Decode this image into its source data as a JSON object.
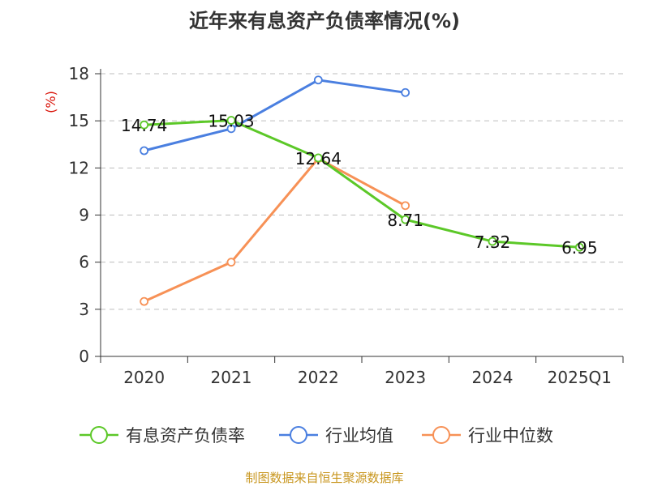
{
  "chart_data": {
    "type": "line",
    "title": "近年来有息资产负债率情况(%)",
    "ylabel": "(%)",
    "xlabel": "",
    "categories": [
      "2020",
      "2021",
      "2022",
      "2023",
      "2024",
      "2025Q1"
    ],
    "ylim": [
      0,
      18
    ],
    "yticks": [
      0,
      3,
      6,
      9,
      12,
      15,
      18
    ],
    "grid": true,
    "legend_position": "bottom",
    "series": [
      {
        "name": "有息资产负债率",
        "color": "#5cc828",
        "values": [
          14.74,
          15.03,
          12.64,
          8.71,
          7.32,
          6.95
        ],
        "data_labels": [
          "14.74",
          "15.03",
          "12.64",
          "8.71",
          "7.32",
          "6.95"
        ]
      },
      {
        "name": "行业均值",
        "color": "#4a7fe0",
        "values": [
          13.1,
          14.5,
          17.6,
          16.8,
          null,
          null
        ]
      },
      {
        "name": "行业中位数",
        "color": "#f79156",
        "values": [
          3.5,
          6.0,
          12.6,
          9.6,
          null,
          null
        ]
      }
    ],
    "source": "制图数据来自恒生聚源数据库"
  }
}
